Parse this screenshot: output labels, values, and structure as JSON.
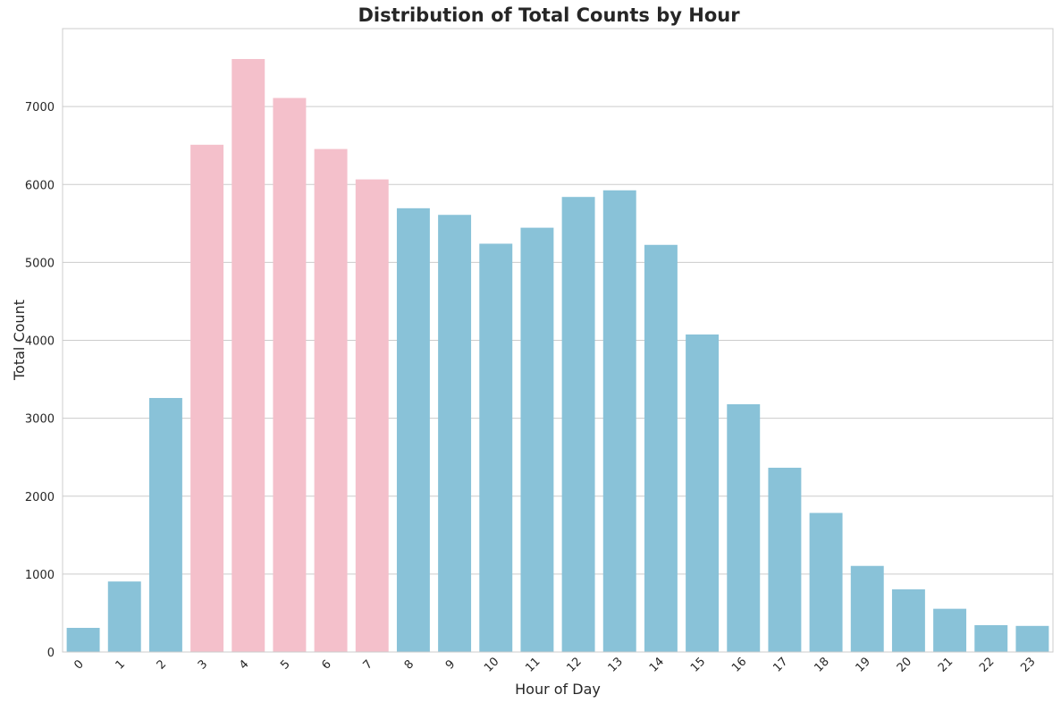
{
  "chart_data": {
    "type": "bar",
    "title": "Distribution of Total Counts by Hour",
    "xlabel": "Hour of Day",
    "ylabel": "Total Count",
    "categories": [
      "0",
      "1",
      "2",
      "3",
      "4",
      "5",
      "6",
      "7",
      "8",
      "9",
      "10",
      "11",
      "12",
      "13",
      "14",
      "15",
      "16",
      "17",
      "18",
      "19",
      "20",
      "21",
      "22",
      "23"
    ],
    "values": [
      310,
      905,
      3260,
      6510,
      7610,
      7110,
      6455,
      6065,
      5695,
      5610,
      5240,
      5445,
      5840,
      5925,
      5225,
      4075,
      3180,
      2365,
      1785,
      1105,
      805,
      555,
      345,
      335
    ],
    "highlight_categories": [
      "3",
      "4",
      "5",
      "6",
      "7"
    ],
    "colors": {
      "default": "#89c2d8",
      "highlight": "#f4c0cb"
    },
    "ylim": [
      0,
      8000
    ],
    "yticks": [
      0,
      1000,
      2000,
      3000,
      4000,
      5000,
      6000,
      7000
    ],
    "grid": "horizontal",
    "xtick_rotation": -45
  }
}
